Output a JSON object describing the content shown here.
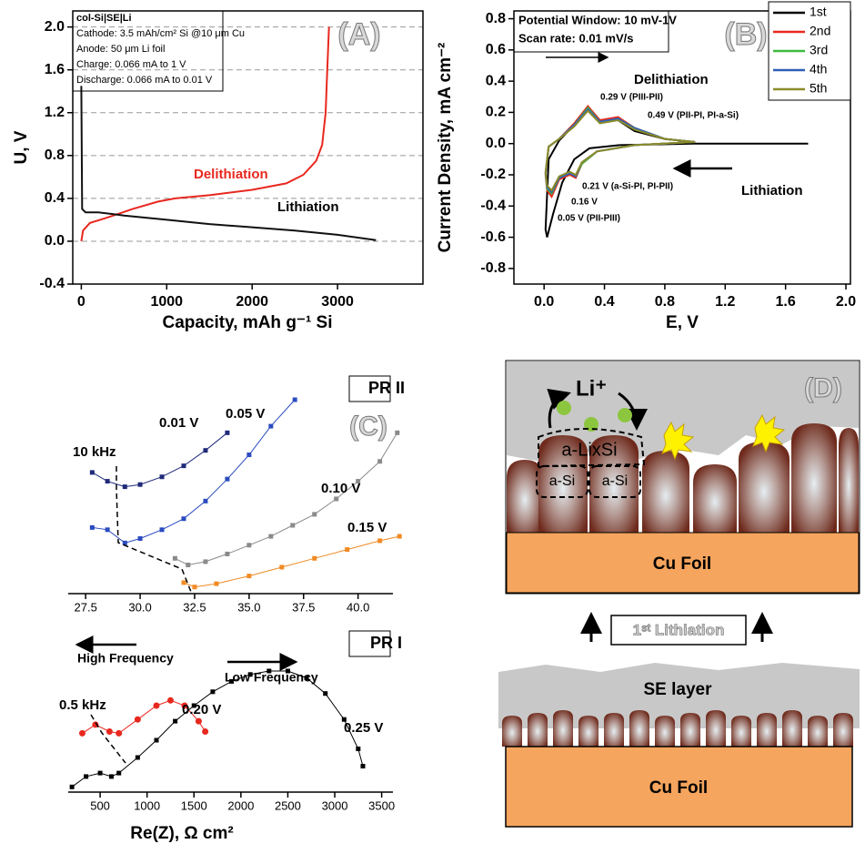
{
  "chart_data": [
    {
      "type": "line",
      "xlabel": "Capacity, mAh g⁻¹ Si",
      "ylabel": "U, V",
      "xlim": [
        -100,
        4000
      ],
      "ylim": [
        -0.4,
        2.15
      ],
      "xticks": [
        0,
        1000,
        2000,
        3000
      ],
      "yticks": [
        {
          "value": 2,
          "label": "2.0"
        },
        1.6,
        1.2,
        0.8,
        0.4,
        {
          "value": 0,
          "label": "0.0"
        },
        -0.4
      ],
      "grid": true,
      "annotations": [
        "(A)",
        "col-Si|SE|Li",
        "Cathode: 3.5 mAh/cm² Si @10 μm Cu",
        "Anode: 50 μm Li foil",
        "Charge: 0.066 mA to 1 V",
        "Discharge: 0.066 mA to 0.01 V"
      ],
      "series": [
        {
          "name": "Delithiation",
          "color": "#e8281e",
          "x": [
            0,
            20,
            100,
            300,
            600,
            900,
            1100,
            1500,
            2000,
            2400,
            2600,
            2750,
            2820,
            2860,
            2880,
            2900
          ],
          "values": [
            0.0,
            0.1,
            0.17,
            0.22,
            0.3,
            0.37,
            0.4,
            0.43,
            0.48,
            0.54,
            0.62,
            0.75,
            0.9,
            1.2,
            1.6,
            2.0
          ]
        },
        {
          "name": "Lithiation",
          "color": "#111111",
          "x": [
            0,
            10,
            50,
            200,
            500,
            1000,
            1500,
            2000,
            2500,
            3000,
            3450
          ],
          "values": [
            1.45,
            0.3,
            0.27,
            0.27,
            0.24,
            0.2,
            0.16,
            0.13,
            0.1,
            0.06,
            0.01
          ]
        }
      ]
    },
    {
      "type": "line",
      "xlabel": "E, V",
      "ylabel": "Current Density, mA cm⁻²",
      "xlim": [
        -0.2,
        2.03
      ],
      "ylim": [
        -0.9,
        0.85
      ],
      "xticks": [
        {
          "value": 0,
          "label": "0.0"
        },
        0.4,
        0.8,
        1.2,
        1.6,
        {
          "value": 2,
          "label": "2.0"
        }
      ],
      "yticks": [
        0.8,
        0.6,
        0.4,
        0.2,
        {
          "value": 0,
          "label": "0.0"
        },
        -0.2,
        -0.4,
        -0.6,
        -0.8
      ],
      "legend": "upper right",
      "annotations": [
        "(B)",
        "Potential Window: 10 mV-1V",
        "Scan rate: 0.01 mV/s",
        "Delithiation",
        "Lithiation",
        "0.29 V (PIII-PII)",
        "0.49 V (PII-PI, PI-a-Si)",
        "0.21 V (a-Si-PI, PI-PII)",
        "0.16 V",
        "0.05 V (PII-PIII)"
      ],
      "series": [
        {
          "name": "1st",
          "color": "#000000",
          "x": [
            1.75,
            1.0,
            0.5,
            0.3,
            0.2,
            0.12,
            0.06,
            0.02,
            0.01,
            0.03,
            0.1,
            0.2,
            0.29,
            0.37,
            0.49,
            0.6,
            0.8,
            1.0
          ],
          "values": [
            0,
            0,
            -0.01,
            -0.03,
            -0.1,
            -0.25,
            -0.45,
            -0.6,
            -0.55,
            -0.1,
            0.02,
            0.12,
            0.22,
            0.15,
            0.15,
            0.08,
            0.03,
            0.01
          ]
        },
        {
          "name": "2nd",
          "color": "#e8281e",
          "x": [
            1.0,
            0.6,
            0.35,
            0.25,
            0.21,
            0.17,
            0.1,
            0.05,
            0.02,
            0.01,
            0.03,
            0.1,
            0.2,
            0.29,
            0.37,
            0.49,
            0.6,
            0.8,
            1.0
          ],
          "values": [
            0.01,
            -0.01,
            -0.05,
            -0.13,
            -0.22,
            -0.2,
            -0.23,
            -0.34,
            -0.3,
            -0.2,
            -0.02,
            0.03,
            0.13,
            0.24,
            0.15,
            0.17,
            0.1,
            0.03,
            0.01
          ]
        },
        {
          "name": "3rd",
          "color": "#3dbb3d",
          "x": [
            1.0,
            0.6,
            0.35,
            0.25,
            0.21,
            0.17,
            0.1,
            0.05,
            0.02,
            0.01,
            0.03,
            0.1,
            0.2,
            0.29,
            0.37,
            0.49,
            0.6,
            0.8,
            1.0
          ],
          "values": [
            0.01,
            -0.01,
            -0.05,
            -0.13,
            -0.21,
            -0.19,
            -0.22,
            -0.32,
            -0.29,
            -0.19,
            -0.02,
            0.03,
            0.12,
            0.23,
            0.14,
            0.16,
            0.1,
            0.03,
            0.01
          ]
        },
        {
          "name": "4th",
          "color": "#2f5fb8",
          "x": [
            1.0,
            0.6,
            0.35,
            0.25,
            0.21,
            0.17,
            0.1,
            0.05,
            0.02,
            0.01,
            0.03,
            0.1,
            0.2,
            0.29,
            0.37,
            0.49,
            0.6,
            0.8,
            1.0
          ],
          "values": [
            0.01,
            -0.01,
            -0.05,
            -0.12,
            -0.21,
            -0.19,
            -0.22,
            -0.31,
            -0.28,
            -0.19,
            -0.02,
            0.03,
            0.12,
            0.22,
            0.14,
            0.16,
            0.1,
            0.03,
            0.01
          ]
        },
        {
          "name": "5th",
          "color": "#8c8c2a",
          "x": [
            1.0,
            0.6,
            0.35,
            0.25,
            0.21,
            0.17,
            0.1,
            0.05,
            0.02,
            0.01,
            0.03,
            0.1,
            0.2,
            0.29,
            0.37,
            0.49,
            0.6,
            0.8,
            1.0
          ],
          "values": [
            0.01,
            -0.01,
            -0.05,
            -0.12,
            -0.2,
            -0.18,
            -0.21,
            -0.3,
            -0.27,
            -0.18,
            -0.02,
            0.03,
            0.11,
            0.21,
            0.13,
            0.15,
            0.09,
            0.03,
            0.01
          ]
        }
      ]
    },
    {
      "type": "line",
      "markers": true,
      "xlim": [
        26.7,
        41.6
      ],
      "ylim": [
        0,
        10
      ],
      "xticks": [
        27.5,
        {
          "value": 30,
          "label": "30.0"
        },
        32.5,
        {
          "value": 35,
          "label": "35.0"
        },
        37.5,
        {
          "value": 40,
          "label": "40.0"
        }
      ],
      "annotations": [
        "(C)",
        "PR II",
        "10 kHz"
      ],
      "series": [
        {
          "name": "0.01 V",
          "color": "#1f2a7a",
          "marker": "square",
          "x": [
            27.8,
            28.5,
            29.3,
            30.0,
            31,
            32,
            33,
            34
          ],
          "values": [
            5.5,
            5.1,
            4.85,
            4.95,
            5.3,
            5.8,
            6.5,
            7.3
          ]
        },
        {
          "name": "0.05 V",
          "color": "#2b4bc0",
          "marker": "square",
          "x": [
            27.8,
            28.5,
            29.3,
            30,
            31,
            32,
            33,
            34,
            35,
            36,
            37.1
          ],
          "values": [
            3.0,
            2.9,
            2.3,
            2.5,
            2.9,
            3.4,
            4.2,
            5.2,
            6.3,
            7.6,
            8.8
          ]
        },
        {
          "name": "0.10 V",
          "color": "#8a8a8a",
          "marker": "square",
          "x": [
            31.6,
            32.2,
            33,
            34,
            35,
            36,
            37,
            38,
            39,
            40,
            41,
            41.8
          ],
          "values": [
            1.6,
            1.3,
            1.45,
            1.8,
            2.2,
            2.6,
            3.1,
            3.6,
            4.3,
            5.1,
            6.0,
            7.3
          ]
        },
        {
          "name": "0.15 V",
          "color": "#f08a24",
          "marker": "square",
          "x": [
            32.0,
            32.5,
            33.5,
            35,
            36.5,
            38,
            39.5,
            41,
            41.9
          ],
          "values": [
            0.5,
            0.3,
            0.45,
            0.8,
            1.2,
            1.6,
            2.0,
            2.4,
            2.6
          ]
        }
      ]
    },
    {
      "type": "line",
      "markers": true,
      "xlabel": "Re(Z), Ω cm²",
      "xlim": [
        160,
        3620
      ],
      "ylim": [
        0,
        10
      ],
      "xticks": [
        500,
        1000,
        1500,
        2000,
        2500,
        3000,
        3500
      ],
      "annotations": [
        "PR I",
        "High Frequency",
        "Low Frequency",
        "0.5 kHz"
      ],
      "series": [
        {
          "name": "0.20 V",
          "color": "#e8281e",
          "marker": "circle",
          "x": [
            310,
            450,
            600,
            700,
            900,
            1100,
            1250,
            1400,
            1550,
            1620
          ],
          "values": [
            3.4,
            3.9,
            3.5,
            3.4,
            4.2,
            5.0,
            5.3,
            5.0,
            4.1,
            3.5
          ]
        },
        {
          "name": "0.25 V",
          "color": "#000000",
          "marker": "square",
          "x": [
            200,
            350,
            500,
            620,
            700,
            900,
            1100,
            1300,
            1500,
            1700,
            1900,
            2100,
            2300,
            2500,
            2700,
            2900,
            3100,
            3250,
            3300
          ],
          "values": [
            0.3,
            0.9,
            1.1,
            0.9,
            1.1,
            2.0,
            3.0,
            4.1,
            5.0,
            5.8,
            6.4,
            6.8,
            7.0,
            7.0,
            6.6,
            5.7,
            4.2,
            2.5,
            1.5
          ]
        }
      ]
    }
  ],
  "diagram": {
    "label": "(D)",
    "ion": "Li⁺",
    "alloy": "a-LixSi",
    "a_si": [
      "a-Si",
      "a-Si"
    ],
    "cu_foil": [
      "Cu Foil",
      "Cu Foil"
    ],
    "step": "1ˢᵗ Lithiation",
    "se_layer": "SE layer"
  }
}
